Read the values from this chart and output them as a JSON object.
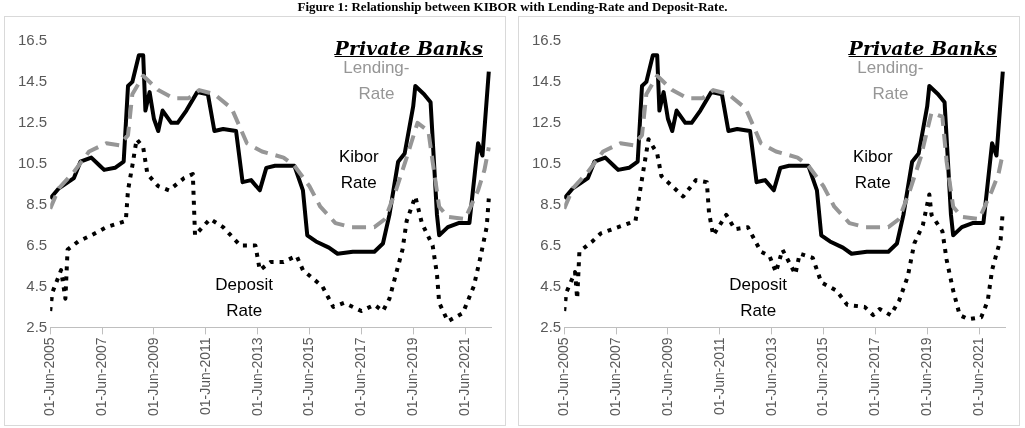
{
  "chart_data": [
    {
      "type": "line",
      "title": "Private Banks",
      "annotations": [
        "Figure 1: Relationship between KIBOR with Lending-Rate and Deposit-Rate."
      ],
      "legend": false,
      "grid": false,
      "marker": "none",
      "xlim": [
        "2005-06-01",
        "2022-06-01"
      ],
      "xticks": [
        {
          "value": "2005-06-01",
          "label": "01-Jun-2005"
        },
        {
          "value": "2007-06-01",
          "label": "01-Jun-2007"
        },
        {
          "value": "2009-06-01",
          "label": "01-Jun-2009"
        },
        {
          "value": "2011-06-01",
          "label": "01-Jun-2011"
        },
        {
          "value": "2013-06-01",
          "label": "01-Jun-2013"
        },
        {
          "value": "2015-06-01",
          "label": "01-Jun-2015"
        },
        {
          "value": "2017-06-01",
          "label": "01-Jun-2017"
        },
        {
          "value": "2019-06-01",
          "label": "01-Jun-2019"
        },
        {
          "value": "2021-06-01",
          "label": "01-Jun-2021"
        }
      ],
      "ylim": [
        2.5,
        16.5
      ],
      "yticks": [
        2.5,
        4.5,
        6.5,
        8.5,
        10.5,
        12.5,
        14.5,
        16.5
      ],
      "series": [
        {
          "name": "Lending-Rate",
          "color": "#969696",
          "line_style": "dashed",
          "x": [
            "2005-06",
            "2005-10",
            "2006-05",
            "2006-12",
            "2007-08",
            "2008-02",
            "2008-06",
            "2008-08",
            "2009-01",
            "2009-08",
            "2010-03",
            "2010-10",
            "2011-03",
            "2011-10",
            "2012-06",
            "2013-01",
            "2013-08",
            "2014-06",
            "2014-11",
            "2015-06",
            "2015-11",
            "2016-06",
            "2017-01",
            "2017-12",
            "2018-05",
            "2018-10",
            "2019-03",
            "2019-08",
            "2020-01",
            "2020-03",
            "2020-06",
            "2020-10",
            "2021-06",
            "2021-12",
            "2022-03",
            "2022-05"
          ],
          "values": [
            8.3,
            9.3,
            10.1,
            11.1,
            11.5,
            11.4,
            11.9,
            13.9,
            14.8,
            14.1,
            13.7,
            13.7,
            14.1,
            13.9,
            13.2,
            11.5,
            11.1,
            10.8,
            10.4,
            9.4,
            8.4,
            7.6,
            7.4,
            7.4,
            7.8,
            9.2,
            10.8,
            12.5,
            12.1,
            10.6,
            8.4,
            7.9,
            7.8,
            9.2,
            10.2,
            11.3
          ]
        },
        {
          "name": "Kibor Rate",
          "color": "#000000",
          "line_style": "solid",
          "x": [
            "2005-06",
            "2005-10",
            "2006-05",
            "2006-08",
            "2007-01",
            "2007-05",
            "2007-07",
            "2007-12",
            "2008-04",
            "2008-06",
            "2008-08",
            "2008-11",
            "2009-01",
            "2009-02",
            "2009-04",
            "2009-06",
            "2009-08",
            "2009-10",
            "2010-02",
            "2010-05",
            "2010-09",
            "2011-02",
            "2011-07",
            "2011-10",
            "2012-02",
            "2012-08",
            "2012-11",
            "2013-03",
            "2013-07",
            "2013-10",
            "2014-02",
            "2014-11",
            "2015-03",
            "2015-05",
            "2015-09",
            "2016-03",
            "2016-07",
            "2017-02",
            "2017-12",
            "2018-04",
            "2018-07",
            "2018-11",
            "2019-02",
            "2019-06",
            "2019-07",
            "2019-11",
            "2020-02",
            "2020-05",
            "2020-06",
            "2020-10",
            "2021-03",
            "2021-08",
            "2021-12",
            "2022-02",
            "2022-05"
          ],
          "values": [
            8.8,
            9.3,
            9.8,
            10.6,
            10.8,
            10.4,
            10.2,
            10.3,
            10.6,
            14.3,
            14.5,
            15.8,
            15.8,
            13.1,
            14.0,
            12.7,
            12.1,
            13.1,
            12.5,
            12.5,
            13.1,
            14.0,
            13.9,
            12.1,
            12.2,
            12.1,
            9.6,
            9.7,
            9.2,
            10.3,
            10.4,
            10.4,
            9.2,
            7.0,
            6.7,
            6.4,
            6.1,
            6.2,
            6.2,
            6.6,
            8.0,
            10.6,
            11.0,
            13.3,
            14.3,
            13.9,
            13.5,
            8.0,
            7.0,
            7.4,
            7.6,
            7.6,
            11.5,
            10.9,
            15.0
          ]
        },
        {
          "name": "Deposit Rate",
          "color": "#000000",
          "line_style": "dotted",
          "x": [
            "2005-06",
            "2005-07",
            "2005-11",
            "2006-01",
            "2006-02",
            "2006-07",
            "2007-01",
            "2007-08",
            "2008-05",
            "2008-06",
            "2008-08",
            "2008-10",
            "2009-01",
            "2009-03",
            "2009-08",
            "2010-01",
            "2010-08",
            "2010-12",
            "2011-01",
            "2011-08",
            "2012-02",
            "2012-10",
            "2013-05",
            "2013-07",
            "2013-12",
            "2014-06",
            "2014-12",
            "2015-03",
            "2015-12",
            "2016-05",
            "2016-10",
            "2017-06",
            "2017-12",
            "2018-04",
            "2018-07",
            "2018-10",
            "2019-01",
            "2019-03",
            "2019-07",
            "2019-10",
            "2020-03",
            "2020-05",
            "2020-06",
            "2020-10",
            "2021-05",
            "2021-10",
            "2022-01",
            "2022-04",
            "2022-05"
          ],
          "values": [
            3.3,
            4.2,
            5.3,
            3.9,
            6.3,
            6.7,
            7.0,
            7.4,
            7.7,
            9.2,
            10.4,
            11.7,
            11.3,
            10.0,
            9.4,
            9.2,
            9.8,
            10.0,
            7.0,
            7.8,
            7.4,
            6.5,
            6.5,
            5.3,
            5.7,
            5.7,
            6.0,
            5.3,
            4.5,
            3.5,
            3.7,
            3.3,
            3.6,
            3.3,
            3.9,
            5.1,
            6.3,
            7.7,
            8.9,
            7.6,
            6.5,
            5.1,
            3.7,
            2.8,
            3.2,
            4.5,
            5.9,
            7.4,
            8.8
          ]
        }
      ]
    },
    {
      "type": "line",
      "title": "Private Banks",
      "legend": false,
      "grid": false,
      "marker": "none",
      "xlim": [
        "2005-06-01",
        "2022-06-01"
      ],
      "xticks": [
        {
          "value": "2005-06-01",
          "label": "01-Jun-2005"
        },
        {
          "value": "2007-06-01",
          "label": "01-Jun-2007"
        },
        {
          "value": "2009-06-01",
          "label": "01-Jun-2009"
        },
        {
          "value": "2011-06-01",
          "label": "01-Jun-2011"
        },
        {
          "value": "2013-06-01",
          "label": "01-Jun-2013"
        },
        {
          "value": "2015-06-01",
          "label": "01-Jun-2015"
        },
        {
          "value": "2017-06-01",
          "label": "01-Jun-2017"
        },
        {
          "value": "2019-06-01",
          "label": "01-Jun-2019"
        },
        {
          "value": "2021-06-01",
          "label": "01-Jun-2021"
        }
      ],
      "ylim": [
        2.5,
        16.5
      ],
      "yticks": [
        2.5,
        4.5,
        6.5,
        8.5,
        10.5,
        12.5,
        14.5,
        16.5
      ],
      "series": [
        {
          "name": "Lending-Rate",
          "color": "#969696",
          "line_style": "dashed",
          "x": [
            "2005-06",
            "2005-10",
            "2006-05",
            "2006-12",
            "2007-08",
            "2008-02",
            "2008-06",
            "2008-08",
            "2009-01",
            "2009-08",
            "2010-03",
            "2010-10",
            "2011-03",
            "2011-10",
            "2012-06",
            "2013-01",
            "2013-08",
            "2014-06",
            "2014-11",
            "2015-06",
            "2015-11",
            "2016-06",
            "2017-01",
            "2017-12",
            "2018-05",
            "2018-10",
            "2019-03",
            "2019-08",
            "2020-01",
            "2020-03",
            "2020-06",
            "2020-10",
            "2021-06",
            "2021-12",
            "2022-03",
            "2022-05"
          ],
          "values": [
            8.3,
            9.3,
            10.1,
            11.1,
            11.5,
            11.4,
            11.9,
            13.9,
            14.8,
            14.1,
            13.7,
            13.7,
            14.1,
            13.9,
            13.2,
            11.5,
            11.1,
            10.8,
            10.4,
            9.4,
            8.4,
            7.6,
            7.4,
            7.4,
            7.8,
            9.2,
            10.8,
            13.0,
            12.8,
            10.6,
            8.4,
            7.9,
            7.8,
            9.2,
            10.0,
            11.0
          ]
        },
        {
          "name": "Kibor Rate",
          "color": "#000000",
          "line_style": "solid",
          "x": [
            "2005-06",
            "2005-10",
            "2006-05",
            "2006-08",
            "2007-01",
            "2007-05",
            "2007-07",
            "2007-12",
            "2008-04",
            "2008-06",
            "2008-08",
            "2008-11",
            "2009-01",
            "2009-02",
            "2009-04",
            "2009-06",
            "2009-08",
            "2009-10",
            "2010-02",
            "2010-05",
            "2010-09",
            "2011-02",
            "2011-07",
            "2011-10",
            "2012-02",
            "2012-08",
            "2012-11",
            "2013-03",
            "2013-07",
            "2013-10",
            "2014-02",
            "2014-11",
            "2015-03",
            "2015-05",
            "2015-09",
            "2016-03",
            "2016-07",
            "2017-02",
            "2017-12",
            "2018-04",
            "2018-07",
            "2018-11",
            "2019-02",
            "2019-06",
            "2019-07",
            "2019-11",
            "2020-02",
            "2020-05",
            "2020-06",
            "2020-10",
            "2021-03",
            "2021-08",
            "2021-12",
            "2022-02",
            "2022-05"
          ],
          "values": [
            8.8,
            9.3,
            9.8,
            10.6,
            10.8,
            10.4,
            10.2,
            10.3,
            10.6,
            14.3,
            14.5,
            15.8,
            15.8,
            13.1,
            14.0,
            12.7,
            12.1,
            13.1,
            12.5,
            12.5,
            13.1,
            14.0,
            13.9,
            12.1,
            12.2,
            12.1,
            9.6,
            9.7,
            9.2,
            10.3,
            10.4,
            10.4,
            9.2,
            7.0,
            6.7,
            6.4,
            6.1,
            6.2,
            6.2,
            6.6,
            8.0,
            10.6,
            11.0,
            13.3,
            14.3,
            13.9,
            13.5,
            8.0,
            7.0,
            7.4,
            7.6,
            7.6,
            11.5,
            10.9,
            15.0
          ]
        },
        {
          "name": "Deposit Rate",
          "color": "#000000",
          "line_style": "dotted",
          "x": [
            "2005-06",
            "2005-07",
            "2005-11",
            "2005-12",
            "2006-01",
            "2006-07",
            "2006-11",
            "2007-07",
            "2008-03",
            "2008-05",
            "2008-07",
            "2008-09",
            "2009-01",
            "2009-03",
            "2009-08",
            "2010-01",
            "2010-07",
            "2010-12",
            "2011-01",
            "2011-03",
            "2011-09",
            "2012-01",
            "2012-07",
            "2013-01",
            "2013-05",
            "2013-08",
            "2013-11",
            "2014-05",
            "2014-07",
            "2015-01",
            "2015-05",
            "2015-12",
            "2016-05",
            "2017-01",
            "2017-05",
            "2017-08",
            "2018-01",
            "2018-05",
            "2018-09",
            "2018-12",
            "2019-04",
            "2019-07",
            "2019-08",
            "2020-01",
            "2020-03",
            "2020-06",
            "2020-09",
            "2021-01",
            "2021-07",
            "2021-10",
            "2021-12",
            "2022-02",
            "2022-04",
            "2022-05"
          ],
          "values": [
            3.3,
            4.2,
            5.2,
            3.9,
            6.2,
            6.7,
            7.1,
            7.4,
            7.7,
            9.1,
            10.4,
            11.7,
            11.0,
            9.9,
            9.4,
            8.9,
            9.7,
            9.6,
            8.1,
            7.0,
            8.0,
            7.3,
            7.4,
            6.2,
            6.0,
            5.2,
            6.3,
            5.1,
            6.1,
            5.9,
            4.7,
            4.3,
            3.6,
            3.5,
            3.1,
            3.4,
            3.1,
            3.8,
            5.0,
            6.6,
            7.5,
            9.0,
            8.0,
            7.2,
            5.8,
            4.3,
            3.1,
            2.9,
            3.0,
            3.8,
            5.3,
            6.1,
            6.8,
            8.2
          ]
        }
      ]
    }
  ]
}
